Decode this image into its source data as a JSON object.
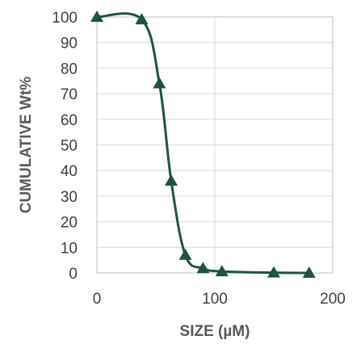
{
  "chart_data": {
    "type": "scatter",
    "title": "",
    "xlabel": "SIZE (µM)",
    "ylabel": "CUMULATIVE Wt%",
    "xlim": [
      0,
      200
    ],
    "ylim": [
      0,
      100
    ],
    "x_ticks": [
      "0",
      "100",
      "200"
    ],
    "y_ticks": [
      "0",
      "10",
      "20",
      "30",
      "40",
      "50",
      "60",
      "70",
      "80",
      "90",
      "100"
    ],
    "grid": true,
    "legend": "none",
    "marker": "triangle",
    "line": "smooth",
    "color": "#1f5247",
    "series": [
      {
        "points": [
          {
            "x": 0,
            "y": 100
          },
          {
            "x": 38,
            "y": 99
          },
          {
            "x": 53,
            "y": 74
          },
          {
            "x": 63,
            "y": 36
          },
          {
            "x": 75,
            "y": 7
          },
          {
            "x": 90,
            "y": 1.8
          },
          {
            "x": 106,
            "y": 0.6
          },
          {
            "x": 150,
            "y": 0.1
          },
          {
            "x": 180,
            "y": 0
          }
        ]
      }
    ]
  }
}
